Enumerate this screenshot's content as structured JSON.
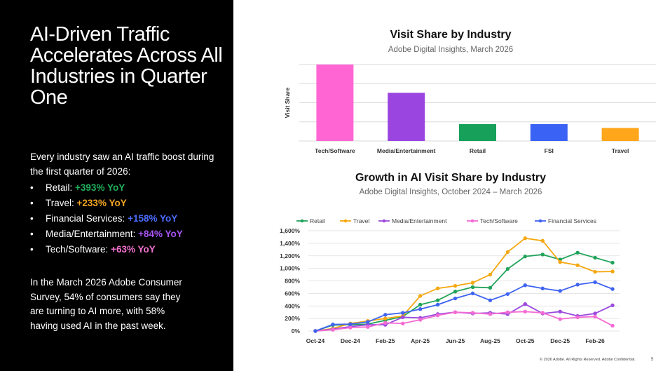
{
  "slide": {
    "title": "AI-Driven Traffic Accelerates Across All Industries in Quarter One",
    "intro": "Every industry saw an AI traffic boost during the first quarter of 2026:",
    "bullets": [
      {
        "label": "Retail:",
        "value": "+393% YoY",
        "color": "#21b05c"
      },
      {
        "label": "Travel:",
        "value": "+233% YoY",
        "color": "#f5a623"
      },
      {
        "label": "Financial Services:",
        "value": "+158% YoY",
        "color": "#4a6bff"
      },
      {
        "label": "Media/Entertainment:",
        "value": "+84% YoY",
        "color": "#a855f7"
      },
      {
        "label": "Tech/Software:",
        "value": "+63% YoY",
        "color": "#f472d0"
      }
    ],
    "survey": "In the March 2026 Adobe Consumer Survey, 54% of consumers say they are turning to AI more, with 58% having used AI in the past week.",
    "footer": "© 2026 Adobe. All Rights Reserved. Adobe Confidential.",
    "page_number": "5"
  },
  "chart_data": [
    {
      "type": "bar",
      "title": "Visit Share by Industry",
      "subtitle": "Adobe Digital Insights, March 2026",
      "ylabel": "Visit Share",
      "xlabel": "",
      "categories": [
        "Tech/Software",
        "Media/Entertainment",
        "Retail",
        "FSI",
        "Travel"
      ],
      "values": [
        100,
        63,
        22,
        22,
        17
      ],
      "colors": [
        "#ff66d4",
        "#9b45e0",
        "#16a05a",
        "#3a62f5",
        "#ffa61a"
      ],
      "ylim": [
        0,
        100
      ],
      "grid": true
    },
    {
      "type": "line",
      "title": "Growth in AI Visit Share by Industry",
      "subtitle": "Adobe Digital Insights, October 2024 – March 2026",
      "xlabel": "",
      "ylabel": "",
      "legend_position": "top",
      "grid": true,
      "ylim": [
        0,
        1600
      ],
      "yticks": [
        "0%",
        "200%",
        "400%",
        "600%",
        "800%",
        "1,000%",
        "1,200%",
        "1,400%",
        "1,600%"
      ],
      "x": [
        "Oct-24",
        "Nov-24",
        "Dec-24",
        "Jan-25",
        "Feb-25",
        "Mar-25",
        "Apr-25",
        "May-25",
        "Jun-25",
        "Jul-25",
        "Aug-25",
        "Sep-25",
        "Oct-25",
        "Nov-25",
        "Dec-25",
        "Jan-26",
        "Feb-26",
        "Mar-26"
      ],
      "xtick_labels": [
        "Oct-24",
        "",
        "Dec-24",
        "",
        "Feb-25",
        "",
        "Apr-25",
        "",
        "Jun-25",
        "",
        "Aug-25",
        "",
        "Oct-25",
        "",
        "Dec-25",
        "",
        "Feb-26",
        ""
      ],
      "series": [
        {
          "name": "Retail",
          "color": "#21a35a",
          "values": [
            0,
            95,
            100,
            110,
            170,
            230,
            420,
            490,
            630,
            700,
            690,
            990,
            1190,
            1220,
            1140,
            1250,
            1170,
            1090
          ]
        },
        {
          "name": "Travel",
          "color": "#f5a811",
          "values": [
            0,
            40,
            120,
            160,
            200,
            240,
            560,
            680,
            720,
            770,
            900,
            1260,
            1480,
            1440,
            1100,
            1050,
            945,
            950
          ]
        },
        {
          "name": "Media/Entertainment",
          "color": "#9c4ade",
          "values": [
            0,
            30,
            70,
            100,
            100,
            220,
            210,
            270,
            300,
            280,
            290,
            270,
            430,
            280,
            310,
            240,
            280,
            410
          ]
        },
        {
          "name": "Tech/Software",
          "color": "#f36bd3",
          "values": [
            0,
            20,
            55,
            65,
            130,
            120,
            180,
            250,
            300,
            290,
            270,
            300,
            310,
            290,
            190,
            220,
            230,
            85
          ]
        },
        {
          "name": "Financial Services",
          "color": "#3f63f0",
          "values": [
            0,
            105,
            110,
            145,
            260,
            290,
            350,
            420,
            520,
            600,
            490,
            590,
            730,
            680,
            640,
            740,
            780,
            670
          ]
        }
      ]
    }
  ]
}
